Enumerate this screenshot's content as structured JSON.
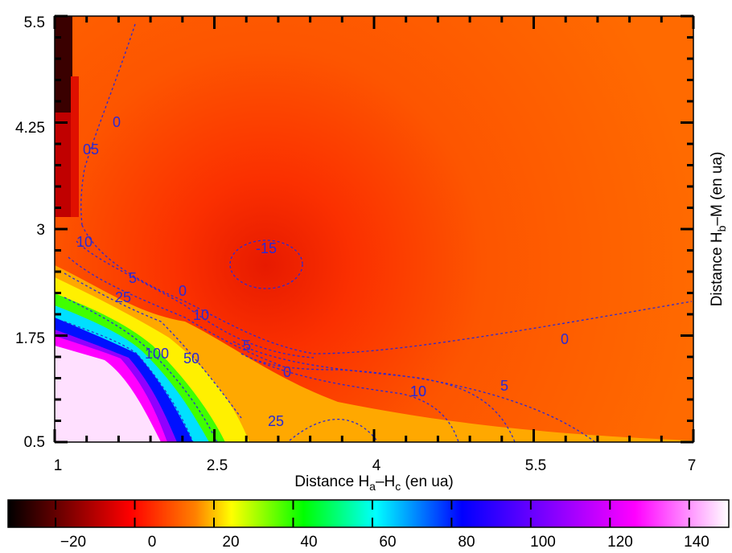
{
  "chart_data": {
    "type": "heatmap",
    "title": "",
    "xlabel": {
      "prefix": "Distance H",
      "sub1": "a",
      "mid": "–H",
      "sub2": "c",
      "suffix": " (en ua)"
    },
    "ylabel": {
      "prefix": "Distance H",
      "sub1": "b",
      "suffix": "–M (en ua)"
    },
    "xlim": [
      1,
      7
    ],
    "ylim": [
      0.5,
      5.5
    ],
    "x_ticks": [
      "1",
      "2.5",
      "4",
      "5.5",
      "7"
    ],
    "y_ticks": [
      "0.5",
      "1.75",
      "3",
      "4.25",
      "5.5"
    ],
    "colorbar": {
      "range": [
        -32,
        150
      ],
      "ticks": [
        "−20",
        "0",
        "20",
        "40",
        "60",
        "80",
        "100",
        "120",
        "140"
      ],
      "colors": [
        "#000000",
        "#ff0000",
        "#ff8000",
        "#ffff00",
        "#00ff00",
        "#00ffff",
        "#0000ff",
        "#8000ff",
        "#ff00ff",
        "#ffffff"
      ]
    },
    "minimum": {
      "x": 3.1,
      "y": 2.6,
      "value": -15
    },
    "contour_labels": [
      "0",
      "-15",
      "0",
      "5",
      "10",
      "5",
      "10",
      "25",
      "0",
      "10",
      "5",
      "100",
      "50",
      "0",
      "10",
      "5",
      "25",
      "0"
    ]
  }
}
